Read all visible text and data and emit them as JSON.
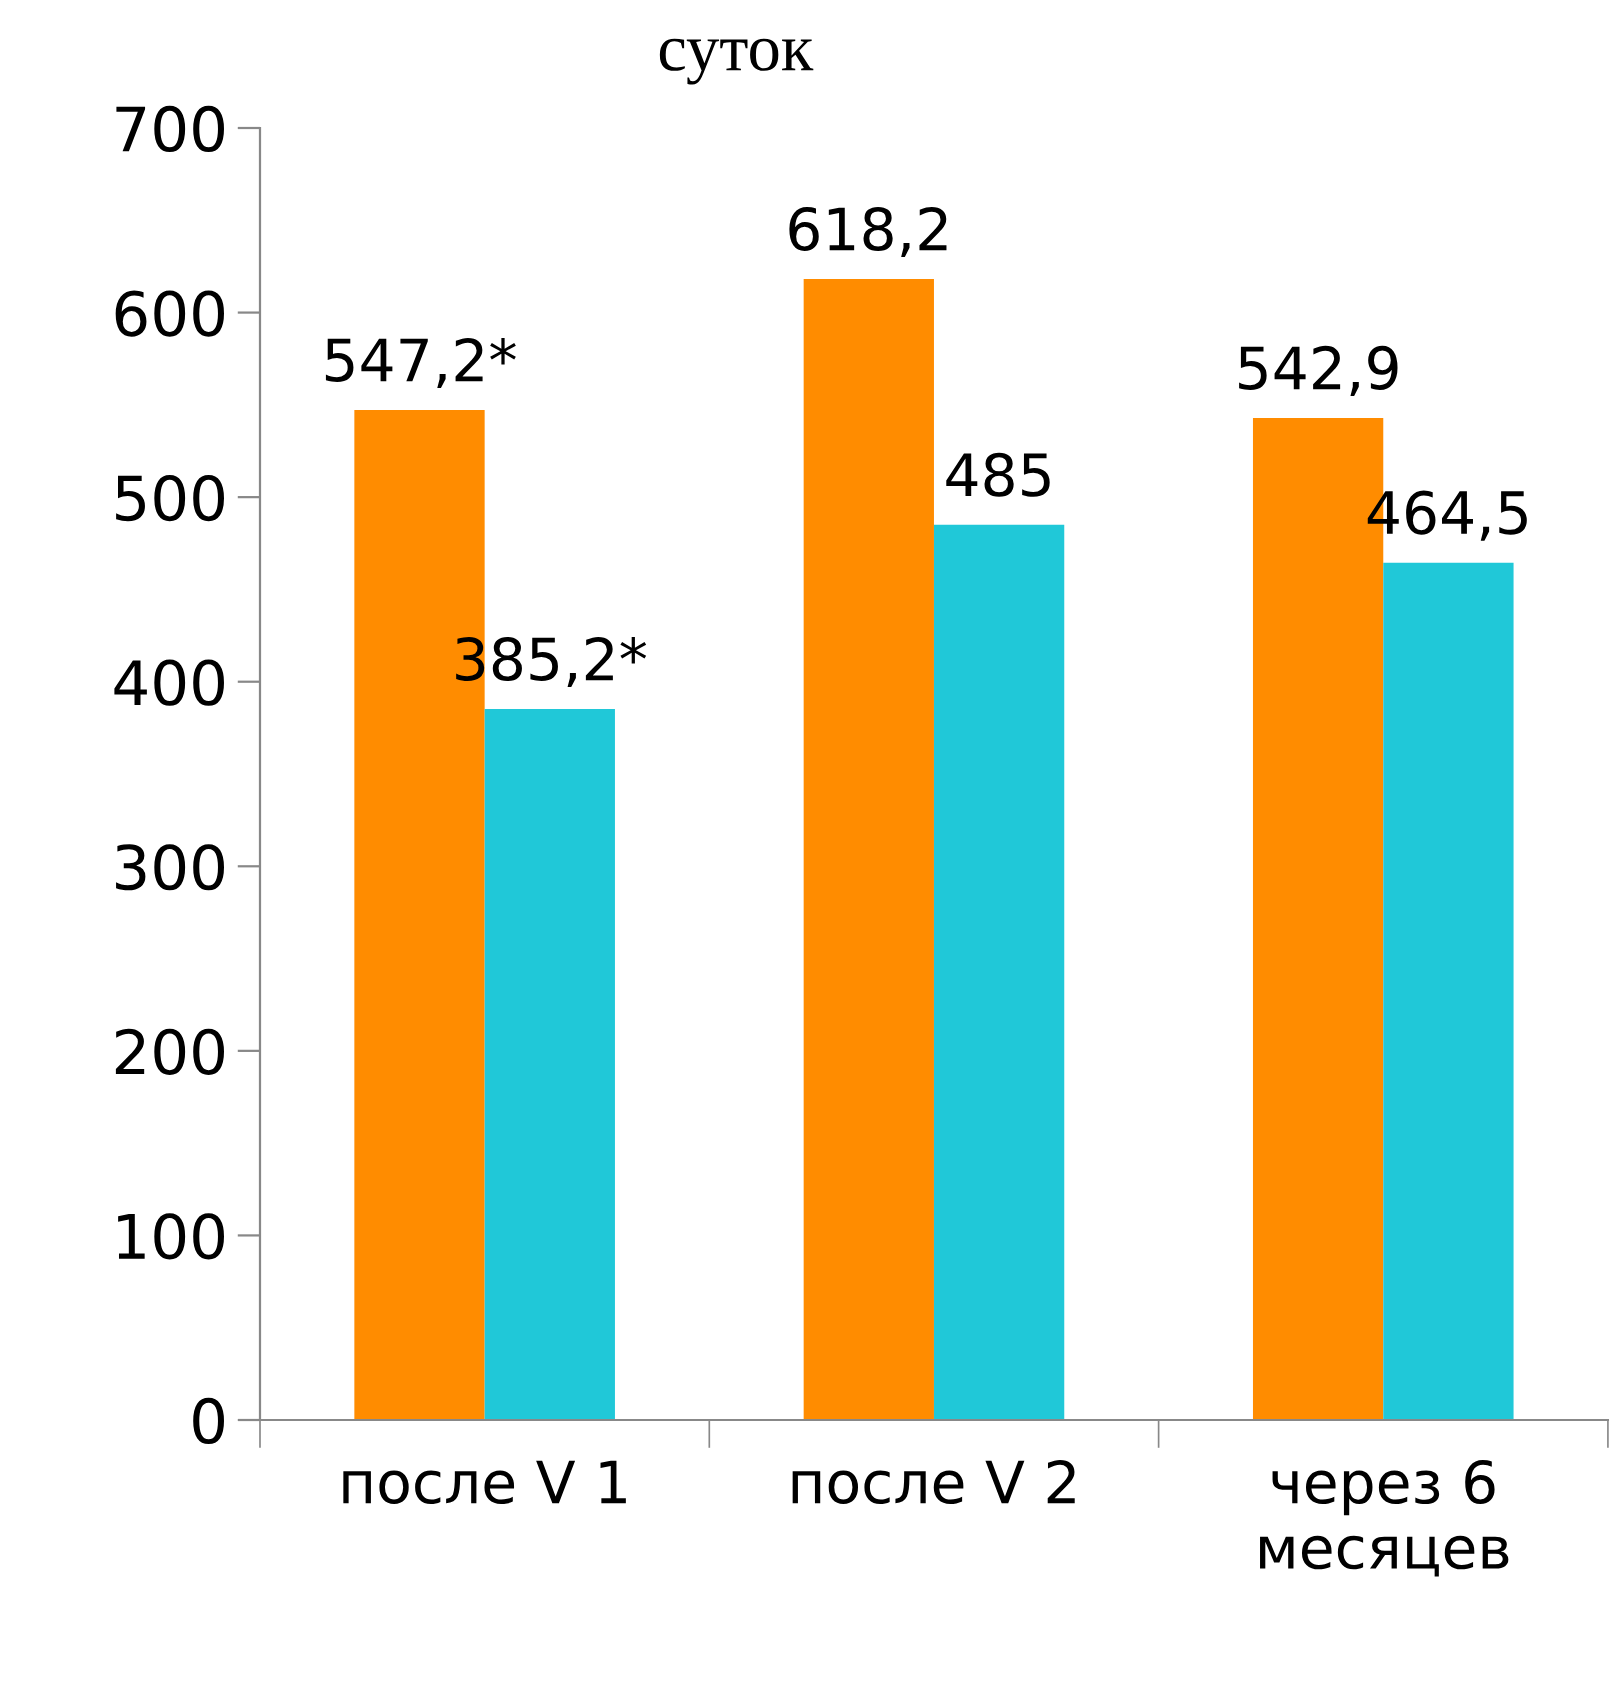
{
  "chart_data": {
    "type": "bar",
    "title": "суток",
    "categories": [
      "после V 1",
      "после V 2",
      "через 6\nмесяцев"
    ],
    "series": [
      {
        "color": "#ff8c00",
        "values": [
          547.2,
          618.2,
          542.9
        ],
        "value_labels": [
          "547,2*",
          "618,2",
          "542,9"
        ]
      },
      {
        "color": "#20c8d8",
        "values": [
          385.2,
          485,
          464.5
        ],
        "value_labels": [
          "385,2*",
          "485",
          "464,5"
        ]
      }
    ],
    "ylim": [
      0,
      700
    ],
    "yticks": [
      0,
      100,
      200,
      300,
      400,
      500,
      600,
      700
    ],
    "grid": false,
    "legend": false
  }
}
